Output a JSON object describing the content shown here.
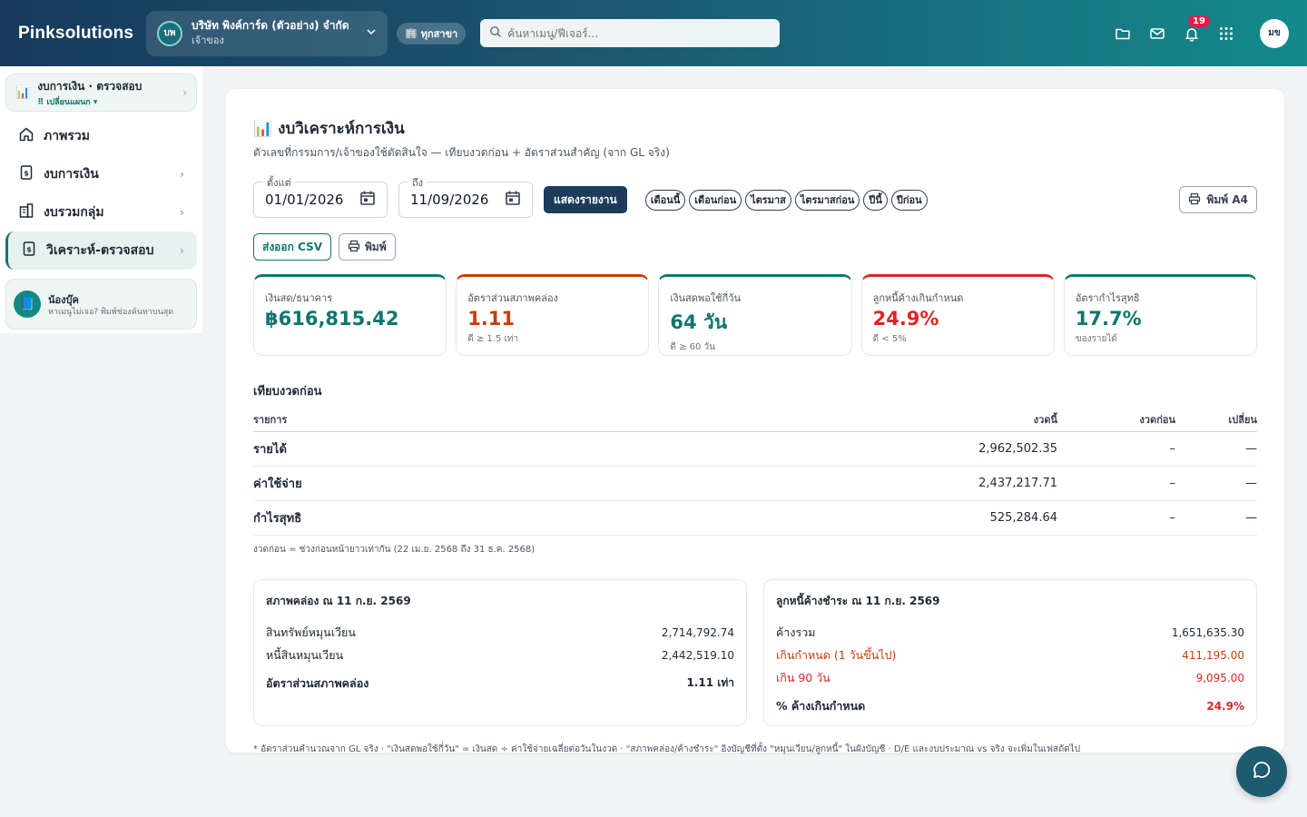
{
  "brand": "Pinksolutions",
  "company": {
    "avatar": "บพ",
    "name": "บริษัท พิงค์การ์ด (ตัวอย่าง) จำกัด",
    "role": "เจ้าของ"
  },
  "branch": {
    "label": "ทุกสาขา",
    "icon": "building-icon"
  },
  "search": {
    "placeholder": "ค้นหาเมนู/ฟีเจอร์..."
  },
  "topbar": {
    "notifications": "19",
    "user_initials": "มข"
  },
  "sidebar": {
    "header": {
      "title": "งบการเงิน · ตรวจสอบ",
      "switch": "⠿ เปลี่ยนแผนก ▾"
    },
    "items": [
      {
        "label": "ภาพรวม",
        "icon": "home-icon"
      },
      {
        "label": "งบการเงิน",
        "icon": "document-icon"
      },
      {
        "label": "งบรวมกลุ่ม",
        "icon": "building-icon"
      },
      {
        "label": "วิเคราะห์-ตรวจสอบ",
        "icon": "document-icon"
      }
    ],
    "helper": {
      "name": "น้องบุ๊ค",
      "text": "หาเมนูไม่เจอ? พิมพ์ช่องค้นหาบนสุด"
    }
  },
  "page": {
    "title": "งบวิเคราะห์การเงิน",
    "subtitle": "ตัวเลขที่กรรมการ/เจ้าของใช้ตัดสินใจ — เทียบงวดก่อน + อัตราส่วนสำคัญ (จาก GL จริง)"
  },
  "filters": {
    "from_label": "ตั้งแต่",
    "from_value": "01/01/2026",
    "to_label": "ถึง",
    "to_value": "11/09/2026",
    "show_report": "แสดงรายงาน",
    "chips": [
      "เดือนนี้",
      "เดือนก่อน",
      "ไตรมาส",
      "ไตรมาสก่อน",
      "ปีนี้",
      "ปีก่อน"
    ],
    "print_a4": "พิมพ์ A4",
    "export_csv": "ส่งออก CSV",
    "print": "พิมพ์"
  },
  "kpis": [
    {
      "label": "เงินสด/ธนาคาร",
      "value": "฿616,815.42",
      "note": "",
      "color": "#0f766e"
    },
    {
      "label": "อัตราส่วนสภาพคล่อง",
      "value": "1.11",
      "note": "ดี ≥ 1.5 เท่า",
      "color": "#c2410c"
    },
    {
      "label": "เงินสดพอใช้กี่วัน",
      "value": "64 วัน",
      "note": "ดี ≥ 60 วัน",
      "color": "#0f766e"
    },
    {
      "label": "ลูกหนี้ค้างเกินกำหนด",
      "value": "24.9%",
      "note": "ดี < 5%",
      "color": "#dc2626"
    },
    {
      "label": "อัตรากำไรสุทธิ",
      "value": "17.7%",
      "note": "ของรายได้",
      "color": "#0f766e"
    }
  ],
  "comparison": {
    "title": "เทียบงวดก่อน",
    "headers": [
      "รายการ",
      "งวดนี้",
      "งวดก่อน",
      "เปลี่ยน"
    ],
    "rows": [
      {
        "item": "รายได้",
        "current": "2,962,502.35",
        "previous": "–",
        "change": "—"
      },
      {
        "item": "ค่าใช้จ่าย",
        "current": "2,437,217.71",
        "previous": "–",
        "change": "—"
      },
      {
        "item": "กำไรสุทธิ",
        "current": "525,284.64",
        "previous": "–",
        "change": "—"
      }
    ],
    "note": "งวดก่อน = ช่วงก่อนหน้ายาวเท่ากัน (22 เม.ย. 2568 ถึง 31 ธ.ค. 2568)"
  },
  "liquidity": {
    "title": "สภาพคล่อง ณ 11 ก.ย. 2569",
    "current_assets_label": "สินทรัพย์หมุนเวียน",
    "current_assets": "2,714,792.74",
    "current_liabilities_label": "หนี้สินหมุนเวียน",
    "current_liabilities": "2,442,519.10",
    "ratio_label": "อัตราส่วนสภาพคล่อง",
    "ratio": "1.11 เท่า"
  },
  "receivables": {
    "title": "ลูกหนี้ค้างชำระ ณ 11 ก.ย. 2569",
    "total_label": "ค้างรวม",
    "total": "1,651,635.30",
    "overdue_label": "เกินกำหนด (1 วันขึ้นไป)",
    "overdue": "411,195.00",
    "over90_label": "เกิน 90 วัน",
    "over90": "9,095.00",
    "pct_label": "% ค้างเกินกำหนด",
    "pct": "24.9%"
  },
  "bottom_note": "* อัตราส่วนคำนวณจาก GL จริง · \"เงินสดพอใช้กี่วัน\" = เงินสด ÷ ค่าใช้จ่ายเฉลี่ยต่อวันในงวด · \"สภาพคล่อง/ค้างชำระ\" อิงบัญชีที่ตั้ง \"หมุนเวียน/ลูกหนี้\" ในผังบัญชี · D/E และงบประมาณ vs จริง จะเพิ่มในเฟสถัดไป"
}
